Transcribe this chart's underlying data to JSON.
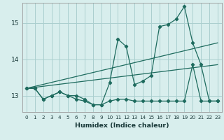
{
  "bg_color": "#d8eeed",
  "grid_color": "#aacfcf",
  "line_color": "#1e6b5e",
  "xlabel": "Humidex (Indice chaleur)",
  "ylim": [
    12.55,
    15.55
  ],
  "xlim": [
    -0.5,
    23.5
  ],
  "yticks": [
    13,
    14,
    15
  ],
  "xticks": [
    0,
    1,
    2,
    3,
    4,
    5,
    6,
    7,
    8,
    9,
    10,
    11,
    12,
    13,
    14,
    15,
    16,
    17,
    18,
    19,
    20,
    21,
    22,
    23
  ],
  "series_main_x": [
    0,
    1,
    2,
    3,
    4,
    5,
    6,
    7,
    8,
    9,
    10,
    11,
    12,
    13,
    14,
    15,
    16,
    17,
    18,
    19,
    20,
    21,
    22,
    23
  ],
  "series_main_y": [
    13.2,
    13.2,
    12.9,
    13.0,
    13.1,
    13.0,
    13.0,
    12.9,
    12.75,
    12.75,
    13.35,
    14.55,
    14.35,
    13.3,
    13.4,
    13.55,
    14.9,
    14.95,
    15.1,
    15.45,
    14.45,
    13.85,
    12.85,
    12.85
  ],
  "series_flat_x": [
    0,
    1,
    2,
    3,
    4,
    5,
    6,
    7,
    8,
    9,
    10,
    11,
    12,
    13,
    14,
    15,
    16,
    17,
    18,
    19,
    20,
    21,
    22,
    23
  ],
  "series_flat_y": [
    13.2,
    13.2,
    12.9,
    13.0,
    13.1,
    13.0,
    12.9,
    12.85,
    12.75,
    12.75,
    12.85,
    12.9,
    12.9,
    12.85,
    12.85,
    12.85,
    12.85,
    12.85,
    12.85,
    12.85,
    13.85,
    12.85,
    12.85,
    12.85
  ],
  "trend1_x": [
    0,
    23
  ],
  "trend1_y": [
    13.2,
    13.85
  ],
  "trend2_x": [
    0,
    23
  ],
  "trend2_y": [
    13.2,
    14.45
  ]
}
